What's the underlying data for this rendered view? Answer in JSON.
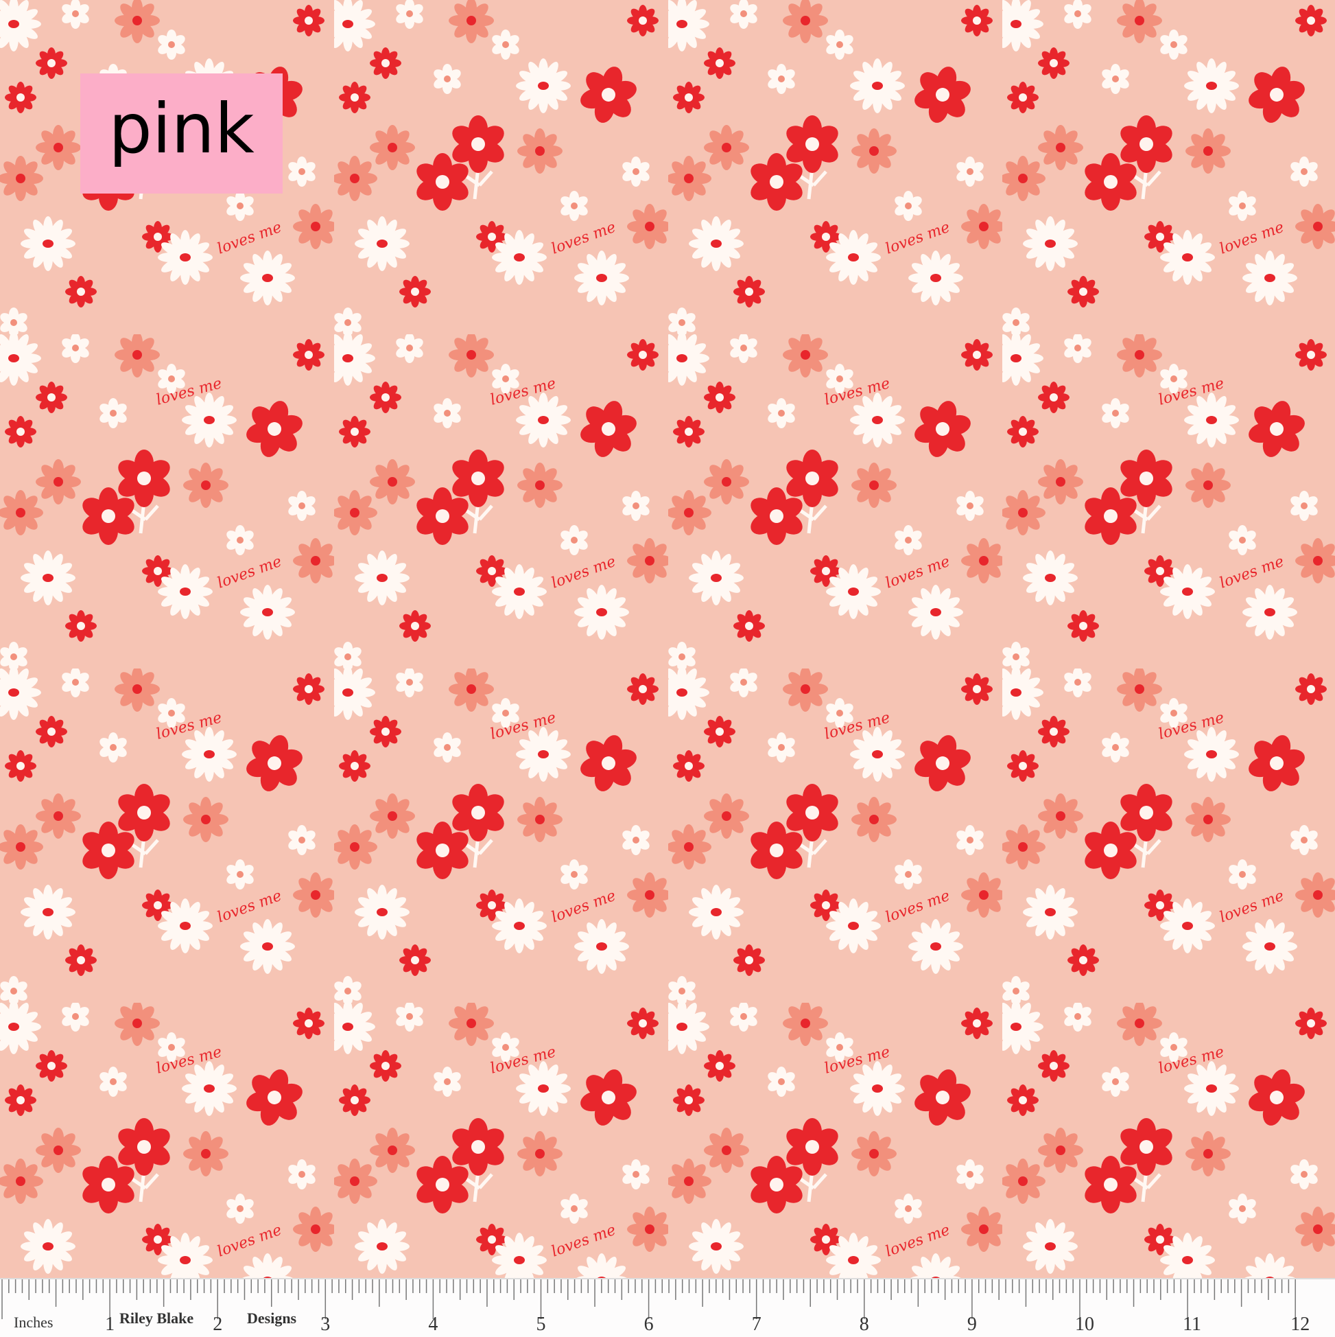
{
  "swatch": {
    "color_label": "pink",
    "label_background": "#fcaec8",
    "fabric_background": "#f6c4b4",
    "print_colors": {
      "red": "#e8262c",
      "white": "#fff8f3",
      "salmon": "#f2907c"
    },
    "print_text": "loves me"
  },
  "ruler": {
    "unit_label": "Inches",
    "brand_left": "Riley Blake",
    "brand_right": "Designs",
    "numbers": [
      "1",
      "2",
      "3",
      "4",
      "5",
      "6",
      "7",
      "8",
      "9",
      "10",
      "11",
      "12"
    ]
  }
}
